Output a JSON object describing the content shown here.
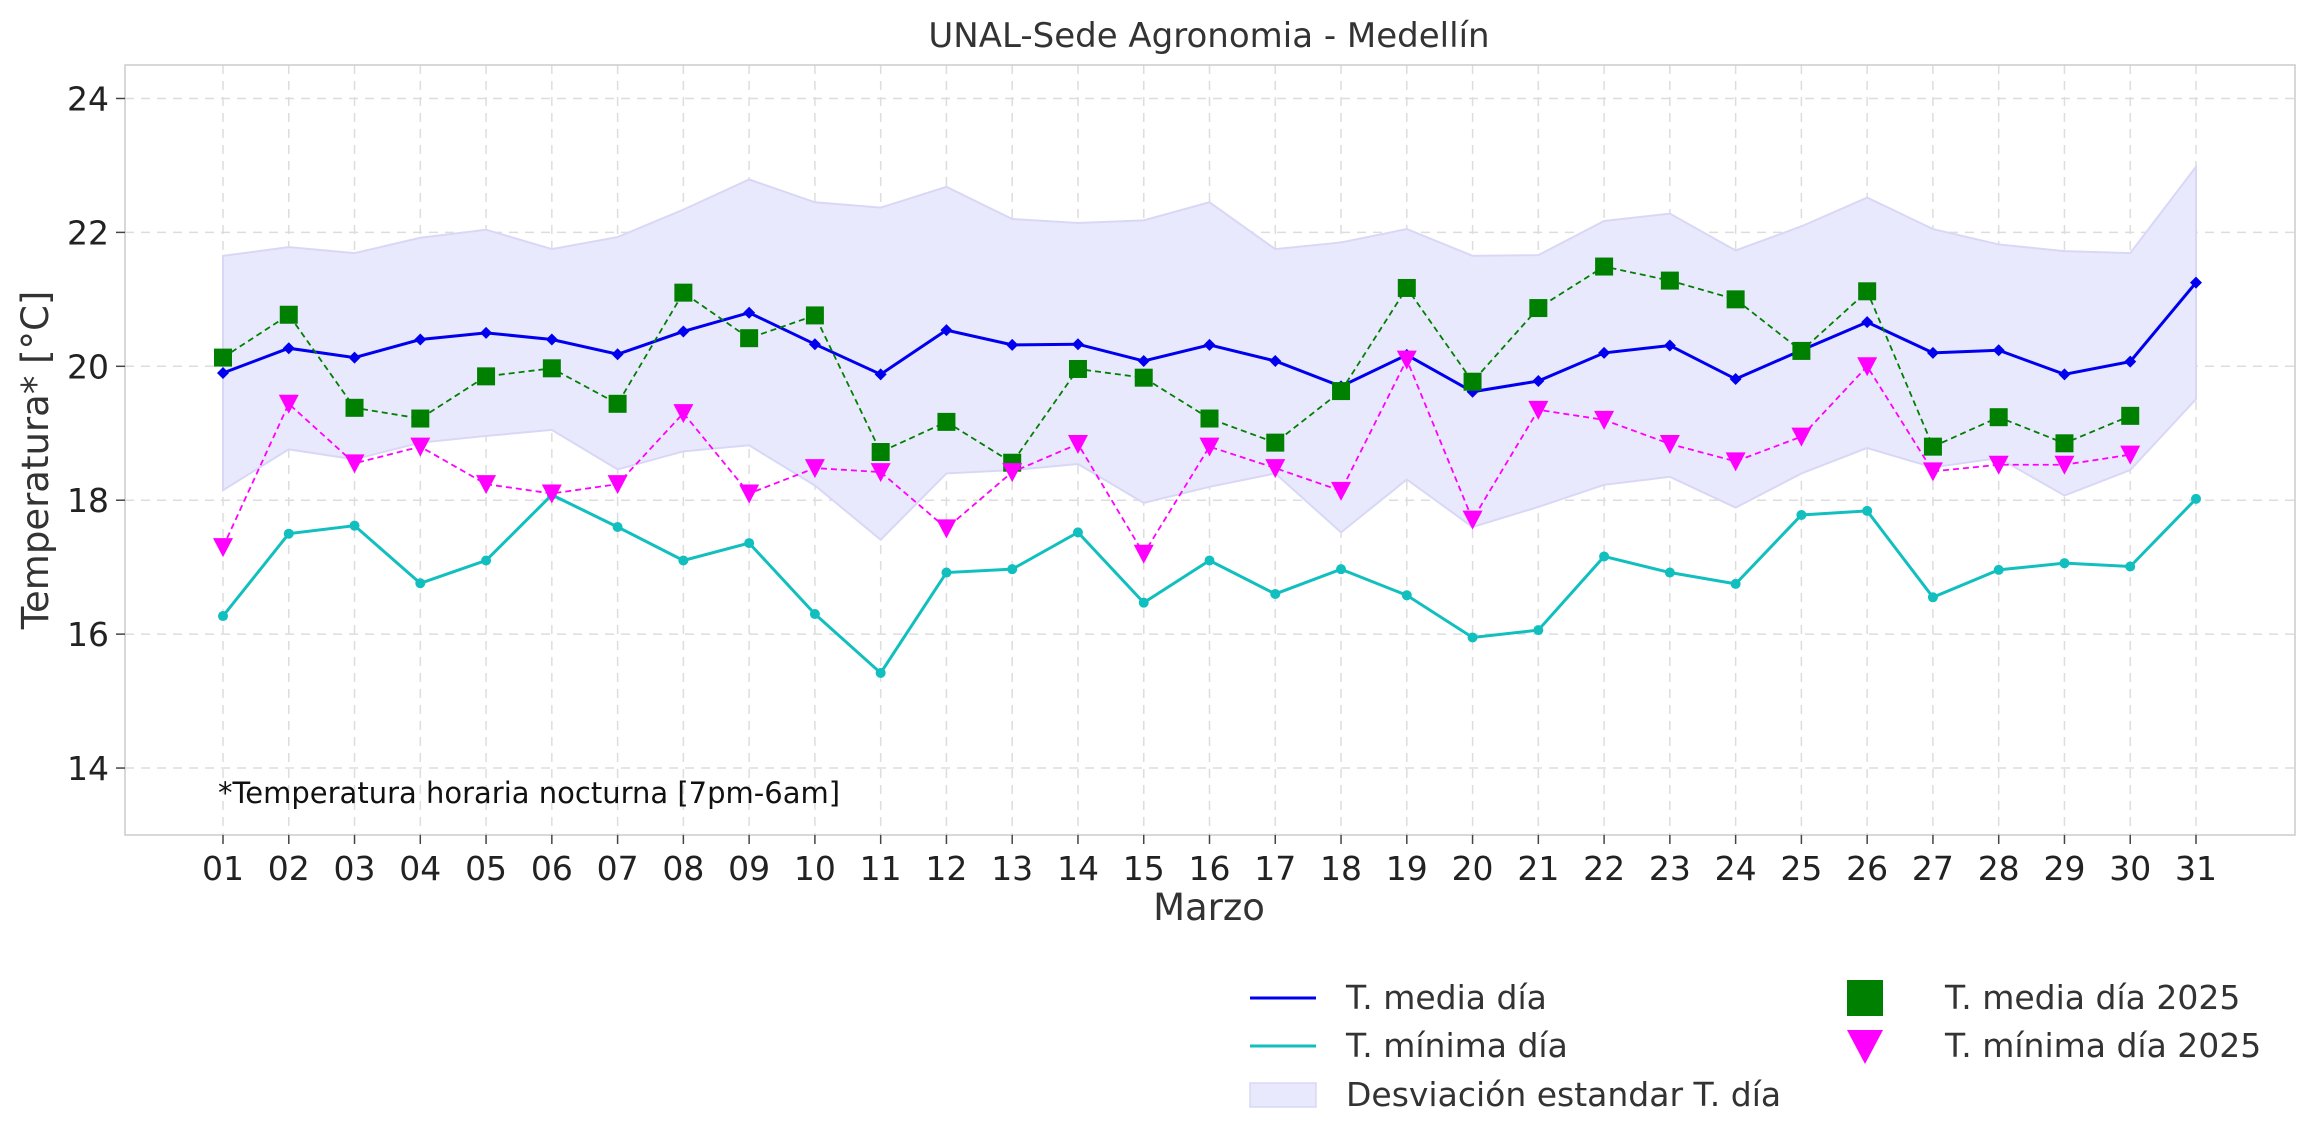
{
  "chart_data": {
    "type": "line",
    "title": "UNAL-Sede Agronomia - Medellín",
    "xlabel": "Marzo",
    "ylabel": "Temperatura* [°C]",
    "annotation": "*Temperatura horaria nocturna [7pm-6am]",
    "ylim": [
      13,
      24.5
    ],
    "yticks": [
      14,
      16,
      18,
      20,
      22,
      24
    ],
    "grid": true,
    "legend_position": "bottom-right",
    "categories": [
      "01",
      "02",
      "03",
      "04",
      "05",
      "06",
      "07",
      "08",
      "09",
      "10",
      "11",
      "12",
      "13",
      "14",
      "15",
      "16",
      "17",
      "18",
      "19",
      "20",
      "21",
      "22",
      "23",
      "24",
      "25",
      "26",
      "27",
      "28",
      "29",
      "30",
      "31"
    ],
    "series": [
      {
        "name": "T. media día",
        "style": "line-marker",
        "color": "#0000ee",
        "values": [
          19.9,
          20.27,
          20.13,
          20.4,
          20.5,
          20.4,
          20.18,
          20.52,
          20.8,
          20.33,
          19.88,
          20.54,
          20.32,
          20.33,
          20.08,
          20.32,
          20.08,
          19.7,
          20.17,
          19.62,
          19.78,
          20.2,
          20.31,
          19.81,
          20.24,
          20.66,
          20.2,
          20.24,
          19.88,
          20.07,
          21.25
        ]
      },
      {
        "name": "T. mínima día",
        "style": "line-marker",
        "color": "#11bfbf",
        "values": [
          16.27,
          17.5,
          17.62,
          16.76,
          17.1,
          18.08,
          17.6,
          17.1,
          17.36,
          16.3,
          15.42,
          16.92,
          16.97,
          17.52,
          16.47,
          17.1,
          16.6,
          16.97,
          16.58,
          15.95,
          16.06,
          17.16,
          16.92,
          16.75,
          17.78,
          17.84,
          16.55,
          16.96,
          17.06,
          17.01,
          18.02
        ]
      },
      {
        "name": "Desviación estandar T. día",
        "style": "band",
        "color": "#e9e9fd",
        "upper": [
          21.65,
          21.78,
          21.69,
          21.92,
          22.04,
          21.75,
          21.93,
          22.34,
          22.79,
          22.45,
          22.37,
          22.68,
          22.2,
          22.14,
          22.18,
          22.45,
          21.75,
          21.85,
          22.05,
          21.65,
          21.66,
          22.17,
          22.28,
          21.73,
          22.09,
          22.52,
          22.05,
          21.82,
          21.72,
          21.69,
          22.98
        ],
        "lower": [
          18.15,
          18.76,
          18.61,
          18.86,
          18.96,
          19.05,
          18.46,
          18.73,
          18.82,
          18.22,
          17.41,
          18.4,
          18.45,
          18.54,
          17.96,
          18.2,
          18.4,
          17.52,
          18.31,
          17.6,
          17.9,
          18.23,
          18.35,
          17.89,
          18.4,
          18.78,
          18.49,
          18.63,
          18.07,
          18.45,
          19.51
        ]
      },
      {
        "name": "T. media día 2025",
        "style": "dashed-square",
        "color": "#008000",
        "values": [
          20.13,
          20.77,
          19.38,
          19.22,
          19.85,
          19.97,
          19.44,
          21.1,
          20.42,
          20.76,
          18.72,
          19.17,
          18.56,
          19.96,
          19.83,
          19.22,
          18.86,
          19.63,
          21.17,
          19.77,
          20.87,
          21.49,
          21.28,
          21.0,
          20.23,
          21.12,
          18.8,
          19.24,
          18.85,
          19.26,
          null
        ]
      },
      {
        "name": "T. mínima día 2025",
        "style": "dashed-triangle",
        "color": "#ff00ff",
        "values": [
          17.3,
          19.44,
          18.55,
          18.8,
          18.24,
          18.1,
          18.24,
          19.3,
          18.1,
          18.48,
          18.42,
          17.58,
          18.42,
          18.84,
          17.2,
          18.8,
          18.48,
          18.14,
          20.1,
          17.71,
          19.35,
          19.2,
          18.84,
          18.58,
          18.95,
          20.0,
          18.43,
          18.53,
          18.53,
          18.68,
          null
        ]
      }
    ]
  }
}
